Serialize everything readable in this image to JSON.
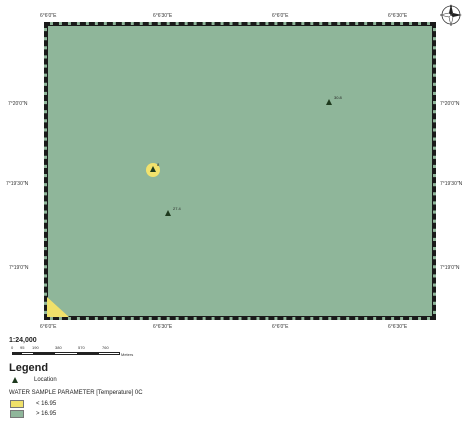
{
  "map": {
    "top_ticks": [
      "6°6'0\"E",
      "6°6'30\"E",
      "6°6'0\"E",
      "6°6'30\"E"
    ],
    "bottom_ticks": [
      "6°6'0\"E",
      "6°6'30\"E",
      "6°6'0\"E",
      "6°6'30\"E"
    ],
    "left_ticks": [
      "7°20'0\"N",
      "7°19'30\"N",
      "7°19'0\"N"
    ],
    "right_ticks": [
      "7°20'0\"N",
      "7°19'30\"N",
      "7°19'0\"N"
    ],
    "locations": [
      {
        "label": "30.8",
        "highlight": false
      },
      {
        "label": "8",
        "highlight": true
      },
      {
        "label": "27.4",
        "highlight": false
      }
    ],
    "colors": {
      "above": "#8fb69a",
      "below": "#f0e16a",
      "point": "#1e3a1e"
    }
  },
  "scale": {
    "ratio": "1:24,000",
    "labels": [
      "0",
      "95",
      "190",
      "380",
      "570",
      "760"
    ],
    "unit": "Meters"
  },
  "legend": {
    "title": "Legend",
    "location_label": "Location",
    "parameter_title": "WATER SAMPLE PARAMETER [Temperature] 0C",
    "classes": [
      {
        "label": "< 16.95",
        "color": "#f0e16a"
      },
      {
        "label": "> 16.95",
        "color": "#8fb69a"
      }
    ]
  },
  "compass": {
    "icon": "north-arrow-compass-icon",
    "letters": [
      "N",
      "S",
      "E",
      "W"
    ]
  }
}
